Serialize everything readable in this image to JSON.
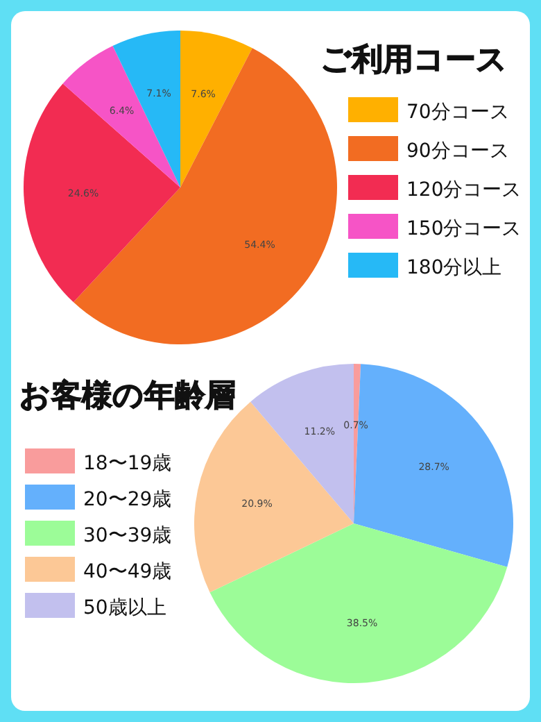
{
  "chart_data": [
    {
      "type": "pie",
      "title": "ご利用コース",
      "categories": [
        "70分コース",
        "90分コース",
        "120分コース",
        "150分コース",
        "180分以上"
      ],
      "values": [
        7.6,
        54.4,
        24.6,
        6.4,
        7.1
      ],
      "value_labels": [
        "7.6%",
        "54.4%",
        "24.6%",
        "6.4%",
        "7.1%"
      ],
      "colors": [
        "#ffb000",
        "#f26c22",
        "#f22c52",
        "#f654c6",
        "#26b9f6"
      ],
      "legend": "right"
    },
    {
      "type": "pie",
      "title": "お客様の年齢層",
      "categories": [
        "18〜19歳",
        "20〜29歳",
        "30〜39歳",
        "40〜49歳",
        "50歳以上"
      ],
      "values": [
        0.7,
        28.7,
        38.5,
        20.9,
        11.2
      ],
      "value_labels": [
        "0.7%",
        "28.7%",
        "38.5%",
        "20.9%",
        "11.2%"
      ],
      "colors": [
        "#f99c9c",
        "#64b0fc",
        "#9cfc98",
        "#fcc896",
        "#c2c0ee"
      ],
      "legend": "left"
    }
  ]
}
